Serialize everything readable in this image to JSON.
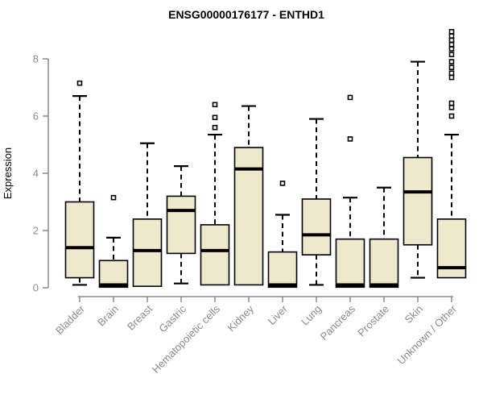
{
  "page": {
    "background": "#ffffff"
  },
  "chart_data": {
    "type": "boxplot",
    "title": "ENSG00000176177 - ENTHD1",
    "ylabel": "Expression",
    "xlabel": "",
    "ylim": [
      0,
      9
    ],
    "yticks": [
      0,
      2,
      4,
      6,
      8
    ],
    "grid": false,
    "legend": "none",
    "colors": {
      "box_fill": "#EEE8CD",
      "box_line": "#000000",
      "axis": "#8C8C8C",
      "title": "#000000",
      "outlier_fill": "#ffffff"
    },
    "categories": [
      "Bladder",
      "Brain",
      "Breast",
      "Gastric",
      "Hematopoietic cells",
      "Kidney",
      "Liver",
      "Lung",
      "Pancreas",
      "Prostate",
      "Skin",
      "Unknown / Other"
    ],
    "series": [
      {
        "category": "Bladder",
        "whisker_low": 0.1,
        "q1": 0.35,
        "median": 1.4,
        "q3": 3.0,
        "whisker_high": 6.7,
        "outliers": [
          7.15
        ]
      },
      {
        "category": "Brain",
        "whisker_low": 0.02,
        "q1": 0.02,
        "median": 0.1,
        "q3": 0.95,
        "whisker_high": 1.75,
        "outliers": [
          3.15
        ]
      },
      {
        "category": "Breast",
        "whisker_low": 0.05,
        "q1": 0.05,
        "median": 1.3,
        "q3": 2.4,
        "whisker_high": 5.05,
        "outliers": []
      },
      {
        "category": "Gastric",
        "whisker_low": 0.15,
        "q1": 1.2,
        "median": 2.7,
        "q3": 3.2,
        "whisker_high": 4.25,
        "outliers": []
      },
      {
        "category": "Hematopoietic cells",
        "whisker_low": 0.1,
        "q1": 0.1,
        "median": 1.3,
        "q3": 2.2,
        "whisker_high": 5.35,
        "outliers": [
          6.4,
          5.95,
          5.6
        ]
      },
      {
        "category": "Kidney",
        "whisker_low": 0.1,
        "q1": 0.1,
        "median": 4.15,
        "q3": 4.9,
        "whisker_high": 6.35,
        "outliers": []
      },
      {
        "category": "Liver",
        "whisker_low": 0.02,
        "q1": 0.02,
        "median": 0.1,
        "q3": 1.25,
        "whisker_high": 2.55,
        "outliers": [
          3.65
        ]
      },
      {
        "category": "Lung",
        "whisker_low": 0.1,
        "q1": 1.15,
        "median": 1.85,
        "q3": 3.1,
        "whisker_high": 5.9,
        "outliers": []
      },
      {
        "category": "Pancreas",
        "whisker_low": 0.02,
        "q1": 0.02,
        "median": 0.1,
        "q3": 1.7,
        "whisker_high": 3.15,
        "outliers": [
          6.65,
          5.2
        ]
      },
      {
        "category": "Prostate",
        "whisker_low": 0.02,
        "q1": 0.02,
        "median": 0.1,
        "q3": 1.7,
        "whisker_high": 3.5,
        "outliers": []
      },
      {
        "category": "Skin",
        "whisker_low": 0.35,
        "q1": 1.5,
        "median": 3.35,
        "q3": 4.55,
        "whisker_high": 7.9,
        "outliers": []
      },
      {
        "category": "Unknown / Other",
        "whisker_low": 0.35,
        "q1": 0.35,
        "median": 0.7,
        "q3": 2.4,
        "whisker_high": 5.35,
        "outliers": [
          8.95,
          8.8,
          8.65,
          8.5,
          8.35,
          8.15,
          7.9,
          7.7,
          7.5,
          7.35,
          6.45,
          6.3,
          6.0
        ]
      }
    ]
  }
}
